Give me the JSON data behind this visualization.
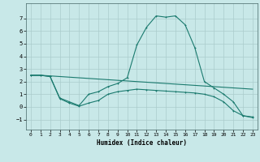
{
  "title": "",
  "xlabel": "Humidex (Indice chaleur)",
  "xlim": [
    -0.5,
    23.5
  ],
  "ylim": [
    -1.8,
    8.2
  ],
  "xticks": [
    0,
    1,
    2,
    3,
    4,
    5,
    6,
    7,
    8,
    9,
    10,
    11,
    12,
    13,
    14,
    15,
    16,
    17,
    18,
    19,
    20,
    21,
    22,
    23
  ],
  "yticks": [
    -1,
    0,
    1,
    2,
    3,
    4,
    5,
    6,
    7
  ],
  "background_color": "#c8e8e8",
  "grid_color": "#aacccc",
  "line_color": "#1a7a6e",
  "line1_x": [
    0,
    1,
    2,
    3,
    4,
    5,
    6,
    7,
    8,
    9,
    10,
    11,
    12,
    13,
    14,
    15,
    16,
    17,
    18,
    19,
    20,
    21,
    22,
    23
  ],
  "line1_y": [
    2.5,
    2.5,
    2.4,
    0.7,
    0.4,
    0.1,
    1.0,
    1.2,
    1.6,
    1.85,
    2.3,
    4.9,
    6.3,
    7.2,
    7.1,
    7.2,
    6.5,
    4.7,
    2.0,
    1.5,
    1.0,
    0.4,
    -0.7,
    -0.8
  ],
  "line2_x": [
    0,
    1,
    2,
    3,
    4,
    5,
    6,
    7,
    8,
    9,
    10,
    11,
    12,
    13,
    14,
    15,
    16,
    17,
    18,
    19,
    20,
    21,
    22,
    23
  ],
  "line2_y": [
    2.5,
    2.5,
    2.45,
    2.4,
    2.35,
    2.3,
    2.25,
    2.2,
    2.15,
    2.1,
    2.05,
    2.0,
    1.95,
    1.9,
    1.85,
    1.8,
    1.75,
    1.7,
    1.65,
    1.6,
    1.55,
    1.5,
    1.45,
    1.4
  ],
  "line3_x": [
    0,
    1,
    2,
    3,
    4,
    5,
    6,
    7,
    8,
    9,
    10,
    11,
    12,
    13,
    14,
    15,
    16,
    17,
    18,
    19,
    20,
    21,
    22,
    23
  ],
  "line3_y": [
    2.5,
    2.5,
    2.4,
    0.65,
    0.3,
    0.05,
    0.3,
    0.5,
    1.0,
    1.2,
    1.3,
    1.4,
    1.35,
    1.3,
    1.25,
    1.2,
    1.15,
    1.1,
    1.0,
    0.8,
    0.4,
    -0.3,
    -0.7,
    -0.85
  ]
}
